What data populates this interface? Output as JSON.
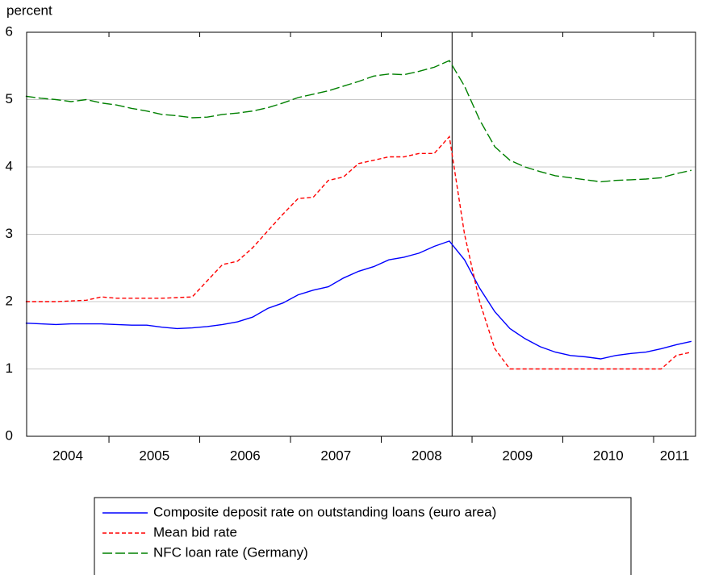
{
  "chart_data": {
    "type": "line",
    "y_label": "percent",
    "x": [
      2004.083,
      2004.25,
      2004.417,
      2004.583,
      2004.75,
      2004.917,
      2005.083,
      2005.25,
      2005.417,
      2005.583,
      2005.75,
      2005.917,
      2006.083,
      2006.25,
      2006.417,
      2006.583,
      2006.75,
      2006.917,
      2007.083,
      2007.25,
      2007.417,
      2007.583,
      2007.75,
      2007.917,
      2008.083,
      2008.25,
      2008.417,
      2008.583,
      2008.75,
      2008.917,
      2009.083,
      2009.25,
      2009.417,
      2009.583,
      2009.75,
      2009.917,
      2010.083,
      2010.25,
      2010.417,
      2010.583,
      2010.75,
      2010.917,
      2011.083,
      2011.25,
      2011.417
    ],
    "series": [
      {
        "name": "Composite deposit rate on outstanding loans (euro area)",
        "color": "#0000ff",
        "dash": "",
        "values": [
          1.68,
          1.67,
          1.66,
          1.67,
          1.67,
          1.67,
          1.66,
          1.65,
          1.65,
          1.62,
          1.6,
          1.61,
          1.63,
          1.66,
          1.7,
          1.77,
          1.9,
          1.98,
          2.1,
          2.17,
          2.22,
          2.35,
          2.45,
          2.52,
          2.62,
          2.66,
          2.72,
          2.82,
          2.9,
          2.62,
          2.2,
          1.85,
          1.6,
          1.45,
          1.33,
          1.25,
          1.2,
          1.18,
          1.15,
          1.2,
          1.23,
          1.25,
          1.3,
          1.36,
          1.41
        ]
      },
      {
        "name": "Mean bid rate",
        "color": "#ff0000",
        "dash": "5,3",
        "values": [
          2.0,
          2.0,
          2.0,
          2.01,
          2.02,
          2.07,
          2.05,
          2.05,
          2.05,
          2.05,
          2.06,
          2.07,
          2.31,
          2.55,
          2.6,
          2.8,
          3.05,
          3.3,
          3.53,
          3.55,
          3.8,
          3.85,
          4.05,
          4.1,
          4.15,
          4.15,
          4.2,
          4.2,
          4.45,
          3.0,
          2.0,
          1.3,
          1.0,
          1.0,
          1.0,
          1.0,
          1.0,
          1.0,
          1.0,
          1.0,
          1.0,
          1.0,
          1.0,
          1.2,
          1.25
        ]
      },
      {
        "name": "NFC loan rate (Germany)",
        "color": "#008000",
        "dash": "12,4",
        "values": [
          5.05,
          5.02,
          5.0,
          4.97,
          5.0,
          4.95,
          4.92,
          4.87,
          4.83,
          4.78,
          4.76,
          4.73,
          4.74,
          4.78,
          4.8,
          4.83,
          4.88,
          4.95,
          5.03,
          5.08,
          5.13,
          5.2,
          5.27,
          5.35,
          5.38,
          5.37,
          5.42,
          5.48,
          5.58,
          5.2,
          4.7,
          4.3,
          4.1,
          4.0,
          3.93,
          3.87,
          3.84,
          3.81,
          3.78,
          3.8,
          3.81,
          3.82,
          3.84,
          3.9,
          3.95
        ]
      }
    ],
    "xlim": [
      2004.093,
      2011.462
    ],
    "xticks": [
      {
        "value": 2004,
        "label": "2004"
      },
      {
        "value": 2005,
        "label": "2005"
      },
      {
        "value": 2006,
        "label": "2006"
      },
      {
        "value": 2007,
        "label": "2007"
      },
      {
        "value": 2008,
        "label": "2008"
      },
      {
        "value": 2009,
        "label": "2009"
      },
      {
        "value": 2010,
        "label": "2010"
      },
      {
        "value": 2011,
        "label": "2011"
      }
    ],
    "ylim": [
      0,
      6
    ],
    "yticks": [
      0,
      1,
      2,
      3,
      4,
      5,
      6
    ],
    "vline": 2008.78,
    "grid": true
  }
}
